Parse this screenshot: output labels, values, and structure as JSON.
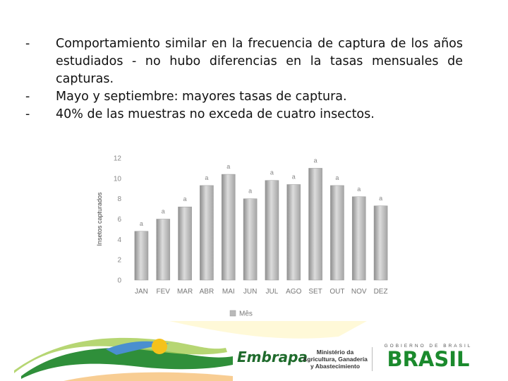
{
  "bullets": [
    "Comportamiento similar en la frecuencia de captura de los años estudiados - no hubo diferencias en la tasas mensuales de capturas.",
    "Mayo y septiembre: mayores tasas de captura.",
    "40% de las muestras no exceda de cuatro insectos."
  ],
  "bullet_marker": "-",
  "chart_data": {
    "type": "bar",
    "title": "",
    "xlabel": "",
    "ylabel": "Insetos capturados",
    "categories": [
      "JAN",
      "FEV",
      "MAR",
      "ABR",
      "MAI",
      "JUN",
      "JUL",
      "AGO",
      "SET",
      "OUT",
      "NOV",
      "DEZ"
    ],
    "series": [
      {
        "name": "Mês",
        "values": [
          4.8,
          6.0,
          7.2,
          9.3,
          10.4,
          8.0,
          9.8,
          9.4,
          11.0,
          9.3,
          8.2,
          7.3
        ],
        "labels": [
          "a",
          "a",
          "a",
          "a",
          "a",
          "a",
          "a",
          "a",
          "a",
          "a",
          "a",
          "a"
        ]
      }
    ],
    "ylim": [
      0,
      12
    ],
    "yticks": [
      0,
      2,
      4,
      6,
      8,
      10,
      12
    ],
    "grid": false,
    "legend": "bottom",
    "bar_color": "#b9b9b9"
  },
  "footer": {
    "embrapa": "Embrapa",
    "ministerio": [
      "Ministério da",
      "Agricultura, Ganadería",
      "y Abastecimiento"
    ],
    "gobierno": "GOBIERNO DE BRASIL",
    "brasil": "BRASIL"
  }
}
